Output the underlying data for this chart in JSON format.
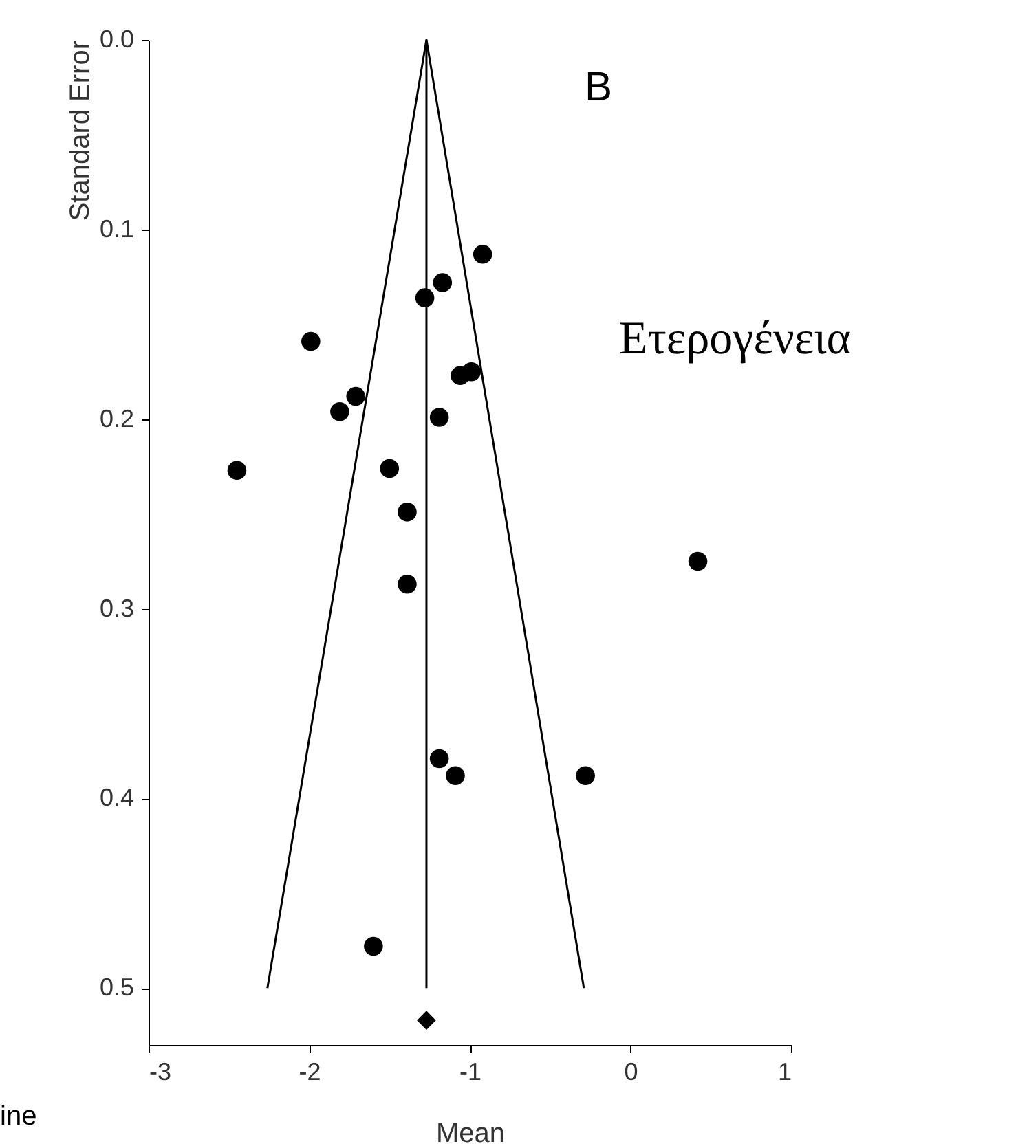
{
  "chart_data": {
    "type": "scatter",
    "xlabel": "Mean",
    "ylabel": "Standard Error",
    "annotations": [
      "B",
      "Ετερογένεια",
      "ine"
    ],
    "xlim": [
      -3,
      1
    ],
    "xticks": [
      -3,
      -2,
      -1,
      0,
      1
    ],
    "ylim": [
      0.53,
      0
    ],
    "yticks": [
      {
        "value": 0,
        "label": "0.0"
      },
      0.1,
      0.2,
      0.3,
      0.4,
      0.5
    ],
    "grid": false,
    "ref_lines": [
      {
        "axis": "x",
        "value": -1.27,
        "color": "#000000"
      }
    ],
    "series": [
      {
        "marker": "circle",
        "color": "#000000",
        "x": [
          -0.92,
          -1.17,
          -1.28,
          -1.99,
          -1.06,
          -0.99,
          -1.71,
          -1.81,
          -1.19,
          -2.45,
          -1.5,
          -1.39,
          -1.39,
          0.42,
          -1.19,
          -1.09,
          -0.28,
          -1.6
        ],
        "values": [
          0.113,
          0.128,
          0.136,
          0.159,
          0.177,
          0.175,
          0.188,
          0.196,
          0.199,
          0.227,
          0.226,
          0.249,
          0.287,
          0.275,
          0.379,
          0.388,
          0.388,
          0.478
        ]
      },
      {
        "type": "scatter",
        "marker": "diamond",
        "color": "#000000",
        "x": [
          -1.27
        ],
        "values": [
          0.517
        ]
      },
      {
        "type": "line",
        "line_style": "solid",
        "color": "#000000",
        "x": [
          -2.26,
          -1.27,
          -0.29
        ],
        "values": [
          0.5,
          0,
          0.5
        ]
      }
    ]
  }
}
